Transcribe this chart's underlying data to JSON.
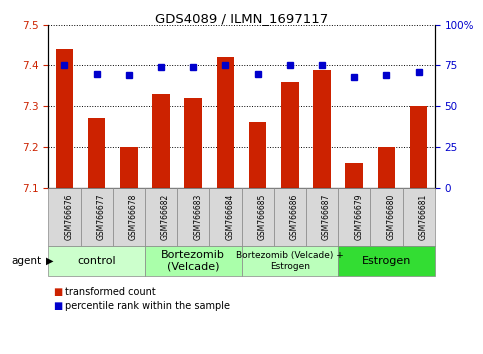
{
  "title": "GDS4089 / ILMN_1697117",
  "samples": [
    "GSM766676",
    "GSM766677",
    "GSM766678",
    "GSM766682",
    "GSM766683",
    "GSM766684",
    "GSM766685",
    "GSM766686",
    "GSM766687",
    "GSM766679",
    "GSM766680",
    "GSM766681"
  ],
  "bar_values": [
    7.44,
    7.27,
    7.2,
    7.33,
    7.32,
    7.42,
    7.26,
    7.36,
    7.39,
    7.16,
    7.2,
    7.3
  ],
  "dot_values": [
    75,
    70,
    69,
    74,
    74,
    75,
    70,
    75,
    75,
    68,
    69,
    71
  ],
  "y_left_min": 7.1,
  "y_left_max": 7.5,
  "y_right_min": 0,
  "y_right_max": 100,
  "y_left_ticks": [
    7.1,
    7.2,
    7.3,
    7.4,
    7.5
  ],
  "y_right_ticks": [
    0,
    25,
    50,
    75,
    100
  ],
  "y_right_tick_labels": [
    "0",
    "25",
    "50",
    "75",
    "100%"
  ],
  "groups": [
    {
      "label": "control",
      "start": 0,
      "end": 3,
      "color": "#ccffcc"
    },
    {
      "label": "Bortezomib\n(Velcade)",
      "start": 3,
      "end": 6,
      "color": "#aaffaa"
    },
    {
      "label": "Bortezomib (Velcade) +\nEstrogen",
      "start": 6,
      "end": 9,
      "color": "#bbffbb"
    },
    {
      "label": "Estrogen",
      "start": 9,
      "end": 12,
      "color": "#44ee44"
    }
  ],
  "bar_color": "#cc2200",
  "dot_color": "#0000cc",
  "bar_bottom": 7.1,
  "legend_items": [
    {
      "color": "#cc2200",
      "label": "transformed count"
    },
    {
      "color": "#0000cc",
      "label": "percentile rank within the sample"
    }
  ],
  "agent_label": "agent",
  "xlim_left": -0.5,
  "xlim_right": 11.5,
  "sample_box_color": "#d8d8d8",
  "sample_box_edge": "#888888"
}
